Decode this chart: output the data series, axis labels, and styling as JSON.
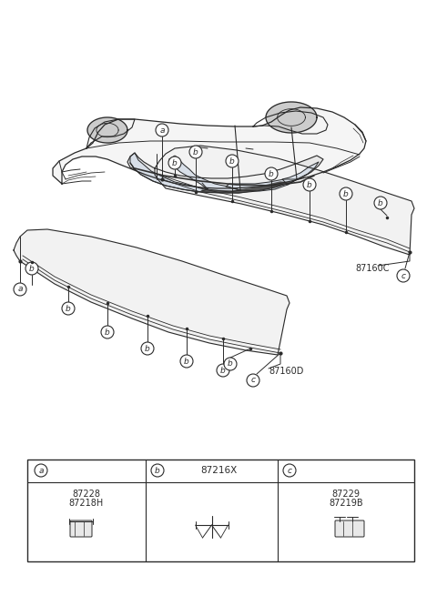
{
  "bg_color": "#ffffff",
  "line_color": "#2a2a2a",
  "label_87160D": "87160D",
  "label_87160C": "87160C",
  "part_b_code": "87216X",
  "part_a_codes": [
    "87228",
    "87218H"
  ],
  "part_c_codes": [
    "87229",
    "87219B"
  ],
  "figsize": [
    4.8,
    6.55
  ],
  "dpi": 100
}
